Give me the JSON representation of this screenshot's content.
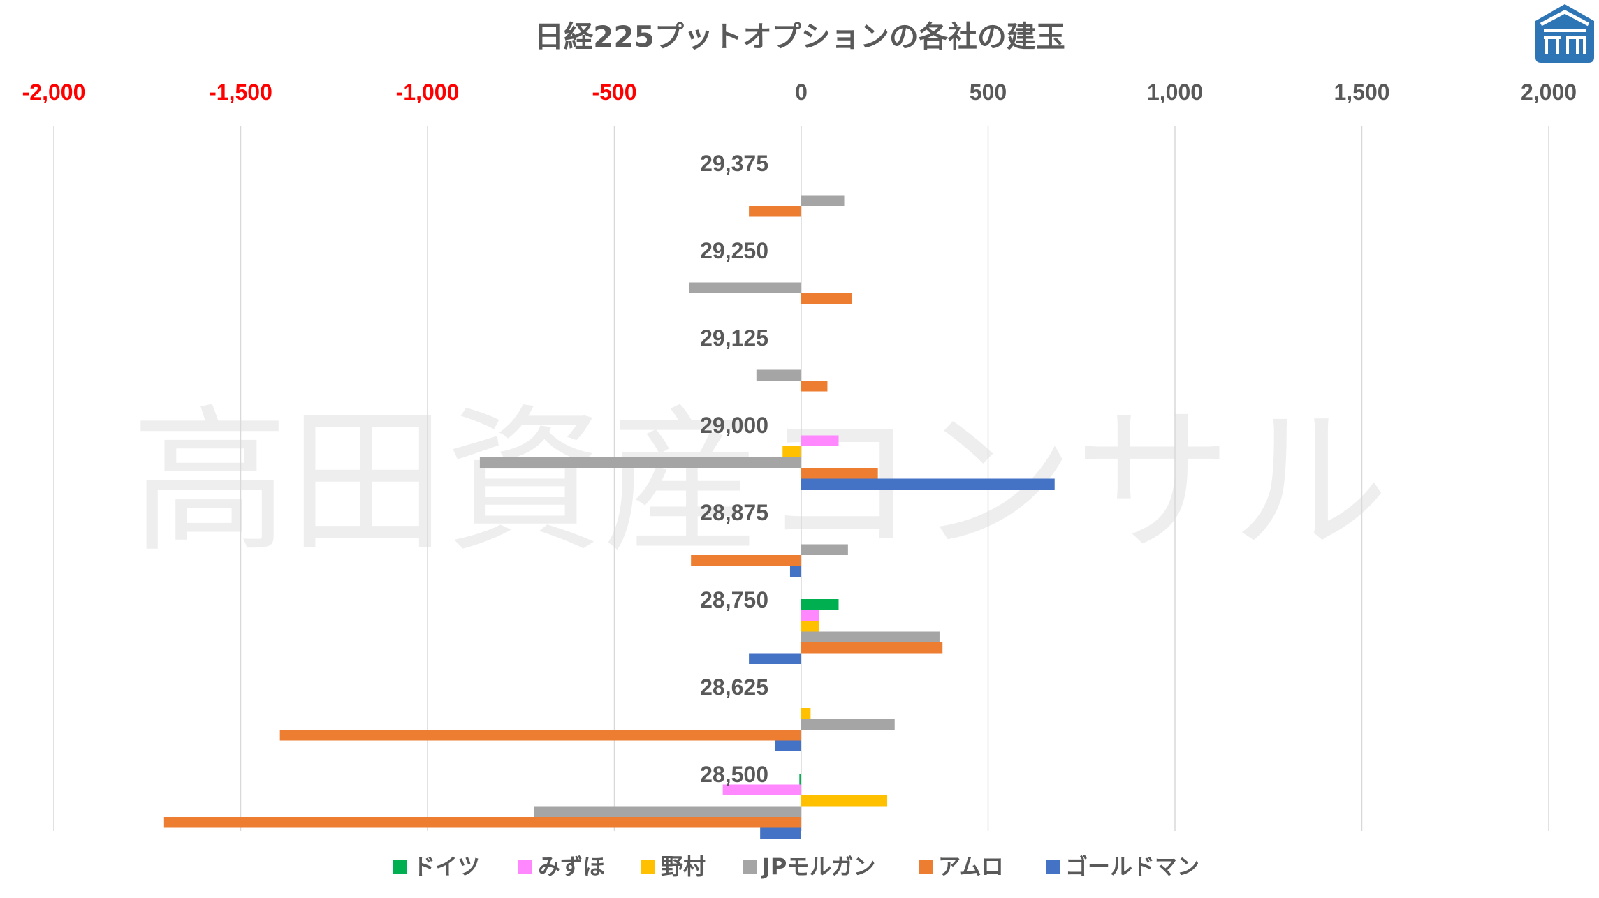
{
  "watermark": "高田資産コンサル",
  "logo": {
    "icon": "takata-logo-icon",
    "color": "#2e75b6"
  },
  "chart_data": {
    "type": "bar",
    "orientation": "horizontal",
    "title": "日経225プットオプションの各社の建玉",
    "categories": [
      "29,375",
      "29,250",
      "29,125",
      "29,000",
      "28,875",
      "28,750",
      "28,625",
      "28,500"
    ],
    "xlim": [
      -2000,
      2000
    ],
    "x_ticks": [
      -2000,
      -1500,
      -1000,
      -500,
      0,
      500,
      1000,
      1500,
      2000
    ],
    "x_tick_labels": [
      "-2,000",
      "-1,500",
      "-1,000",
      "-500",
      "0",
      "500",
      "1,000",
      "1,500",
      "2,000"
    ],
    "negative_tick_color": "#ff0000",
    "x_axis_position": "top",
    "grid": true,
    "legend_position": "bottom",
    "series": [
      {
        "name": "ドイツ",
        "color": "#00b050",
        "values": [
          0,
          0,
          0,
          0,
          0,
          100,
          0,
          -5
        ]
      },
      {
        "name": "みずほ",
        "color": "#ff88ff",
        "values": [
          0,
          0,
          0,
          100,
          0,
          48,
          0,
          -210
        ]
      },
      {
        "name": "野村",
        "color": "#ffc000",
        "values": [
          0,
          0,
          0,
          -50,
          0,
          48,
          25,
          230
        ]
      },
      {
        "name": "JPモルガン",
        "color": "#a5a5a5",
        "values": [
          115,
          -300,
          -120,
          -860,
          125,
          370,
          250,
          -715
        ]
      },
      {
        "name": "アムロ",
        "color": "#ed7d31",
        "values": [
          -140,
          135,
          70,
          205,
          -295,
          378,
          -1395,
          -1705
        ]
      },
      {
        "name": "ゴールドマン",
        "color": "#4472c4",
        "values": [
          0,
          0,
          0,
          678,
          -30,
          -140,
          -70,
          -110
        ]
      }
    ]
  }
}
